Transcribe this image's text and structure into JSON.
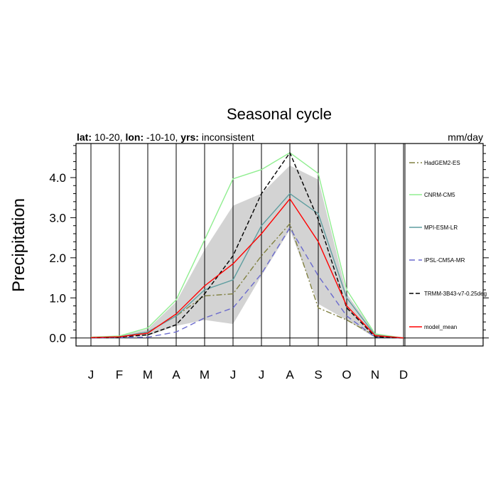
{
  "chart_data": {
    "type": "line",
    "title": "Seasonal cycle",
    "subtitle_left": {
      "lat_label": "lat:",
      "lat_value": "10-20,",
      "lon_label": "lon:",
      "lon_value": "-10-10,",
      "yrs_label": "yrs:",
      "yrs_value": "inconsistent"
    },
    "subtitle_right": "mm/day",
    "ylabel": "Precipitation",
    "xlabel": "",
    "categories": [
      "J",
      "F",
      "M",
      "A",
      "M",
      "J",
      "J",
      "A",
      "S",
      "O",
      "N",
      "D"
    ],
    "ylim": [
      -0.2,
      4.85
    ],
    "yticks": [
      0.0,
      1.0,
      2.0,
      3.0,
      4.0
    ],
    "yticklabels": [
      "0.0",
      "1.0",
      "2.0",
      "3.0",
      "4.0"
    ],
    "grid": "vertical lines at each month",
    "legend_position": "right",
    "band": {
      "lower": [
        0.0,
        0.01,
        0.05,
        0.3,
        0.45,
        0.35,
        1.55,
        2.7,
        0.85,
        0.45,
        0.0,
        0.0
      ],
      "upper": [
        0.02,
        0.05,
        0.22,
        0.9,
        2.2,
        3.3,
        3.6,
        4.3,
        3.95,
        1.1,
        0.12,
        0.0
      ],
      "color": "#d3d3d3"
    },
    "series": [
      {
        "name": "HadGEM2-ES",
        "color": "#808040",
        "dash": "8,3,2,3",
        "values": [
          0.01,
          0.03,
          0.15,
          0.55,
          1.05,
          1.1,
          2.05,
          2.85,
          0.75,
          0.45,
          0.05,
          0.0
        ]
      },
      {
        "name": "CNRM-CM5",
        "color": "#90ee90",
        "dash": "",
        "values": [
          0.02,
          0.05,
          0.25,
          0.95,
          2.45,
          3.97,
          4.2,
          4.62,
          4.1,
          1.2,
          0.1,
          0.0
        ]
      },
      {
        "name": "MPI-ESM-LR",
        "color": "#5f9ea0",
        "dash": "",
        "values": [
          0.01,
          0.03,
          0.15,
          0.55,
          1.2,
          1.45,
          2.8,
          3.6,
          3.1,
          1.0,
          0.07,
          0.0
        ]
      },
      {
        "name": "IPSL-CM5A-MR",
        "color": "#6a6acd",
        "dash": "8,5",
        "values": [
          0.0,
          0.01,
          0.02,
          0.15,
          0.5,
          0.75,
          1.6,
          2.75,
          1.55,
          0.55,
          0.02,
          0.0
        ]
      },
      {
        "name": "TRMM-3B43-v7-0.25deg",
        "color": "#000000",
        "dash": "6,3",
        "values": [
          0.01,
          0.02,
          0.08,
          0.33,
          1.1,
          2.05,
          3.6,
          4.62,
          2.95,
          0.75,
          0.03,
          0.0
        ]
      },
      {
        "name": "model_mean",
        "color": "#ff0000",
        "dash": "",
        "values": [
          0.01,
          0.03,
          0.12,
          0.6,
          1.3,
          1.85,
          2.6,
          3.47,
          2.4,
          0.8,
          0.06,
          0.0
        ]
      }
    ]
  }
}
